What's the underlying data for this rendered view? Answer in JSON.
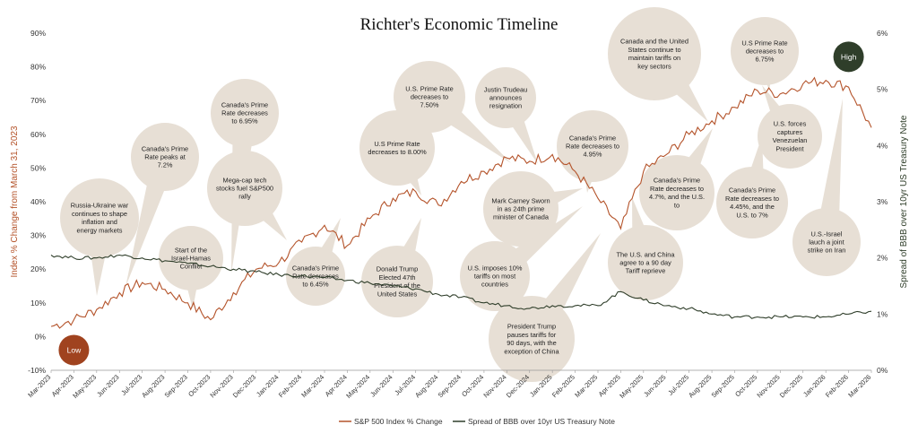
{
  "chart_data": {
    "type": "line",
    "title": "Richter's Economic Timeline",
    "ylabel_left": "Index % Change from March 31, 2023",
    "ylabel_right": "Spread of BBB over 10yr US Treasury Note",
    "y_left_lim": [
      -10,
      90
    ],
    "y_left_ticks": [
      "-10%",
      "0%",
      "10%",
      "20%",
      "30%",
      "40%",
      "50%",
      "60%",
      "70%",
      "80%",
      "90%"
    ],
    "y_right_lim": [
      0,
      6
    ],
    "y_right_ticks": [
      "0%",
      "1%",
      "2%",
      "3%",
      "4%",
      "5%",
      "6%"
    ],
    "x_ticks": [
      "Mar-2023",
      "Apr-2023",
      "May-2023",
      "Jun-2023",
      "Jul-2023",
      "Aug-2023",
      "Sep-2023",
      "Oct-2023",
      "Nov-2023",
      "Dec-2023",
      "Jan-2024",
      "Feb-2024",
      "Mar-2024",
      "Apr-2024",
      "May-2024",
      "Jun-2024",
      "Jul-2024",
      "Aug-2024",
      "Sep-2024",
      "Oct-2024",
      "Nov-2024",
      "Dec-2024",
      "Jan-2025",
      "Feb-2025",
      "Mar-2025",
      "Apr-2025",
      "May-2025",
      "Jun-2025",
      "Jul-2025",
      "Aug-2025",
      "Sep-2025",
      "Oct-2025",
      "Nov-2025",
      "Dec-2025",
      "Jan-2026",
      "Feb-2026",
      "Mar-2026"
    ],
    "grid": false,
    "legend_position": "bottom",
    "series": [
      {
        "name": "S&P 500 Index % Change",
        "axis": "left",
        "color": "#b4532a",
        "x": [
          "Mar-2023",
          "Apr-2023",
          "May-2023",
          "Jun-2023",
          "Jul-2023",
          "Aug-2023",
          "Sep-2023",
          "Oct-2023",
          "Nov-2023",
          "Dec-2023",
          "Jan-2024",
          "Feb-2024",
          "Mar-2024",
          "Apr-2024",
          "May-2024",
          "Jun-2024",
          "Jul-2024",
          "Aug-2024",
          "Sep-2024",
          "Oct-2024",
          "Nov-2024",
          "Dec-2024",
          "Jan-2025",
          "Feb-2025",
          "Mar-2025",
          "Apr-2025",
          "May-2025",
          "Jun-2025",
          "Jul-2025",
          "Aug-2025",
          "Sep-2025",
          "Oct-2025",
          "Nov-2025",
          "Dec-2025",
          "Jan-2026",
          "Feb-2026",
          "Mar-2026"
        ],
        "values": [
          3,
          5,
          8,
          13,
          16,
          14,
          10,
          5,
          13,
          20,
          22,
          28,
          33,
          27,
          35,
          41,
          43,
          39,
          46,
          49,
          53,
          52,
          54,
          49,
          41,
          32,
          49,
          54,
          60,
          64,
          68,
          73,
          72,
          75,
          76,
          74,
          62
        ]
      },
      {
        "name": "Spread of BBB over 10yr US Treasury Note",
        "axis": "right",
        "color": "#2f3e2a",
        "x": [
          "Mar-2023",
          "Apr-2023",
          "May-2023",
          "Jun-2023",
          "Jul-2023",
          "Aug-2023",
          "Sep-2023",
          "Oct-2023",
          "Nov-2023",
          "Dec-2023",
          "Jan-2024",
          "Feb-2024",
          "Mar-2024",
          "Apr-2024",
          "May-2024",
          "Jun-2024",
          "Jul-2024",
          "Aug-2024",
          "Sep-2024",
          "Oct-2024",
          "Nov-2024",
          "Dec-2024",
          "Jan-2025",
          "Feb-2025",
          "Mar-2025",
          "Apr-2025",
          "May-2025",
          "Jun-2025",
          "Jul-2025",
          "Aug-2025",
          "Sep-2025",
          "Oct-2025",
          "Nov-2025",
          "Dec-2025",
          "Jan-2026",
          "Feb-2026",
          "Mar-2026"
        ],
        "values": [
          2.05,
          2.0,
          2.0,
          2.05,
          2.0,
          1.95,
          1.9,
          1.85,
          1.8,
          1.75,
          1.7,
          1.68,
          1.65,
          1.6,
          1.55,
          1.5,
          1.45,
          1.35,
          1.3,
          1.2,
          1.15,
          1.1,
          1.15,
          1.15,
          1.15,
          1.4,
          1.25,
          1.15,
          1.1,
          1.0,
          0.95,
          0.95,
          0.95,
          0.95,
          0.95,
          1.0,
          1.05
        ]
      }
    ],
    "markers": [
      {
        "label": "Low",
        "color": "#a0431f",
        "x": "Apr-2023",
        "y": -4
      },
      {
        "label": "High",
        "color": "#2f3e2a",
        "x": "Feb-2026",
        "y": 83
      }
    ],
    "annotations": [
      {
        "text": "Russia-Ukraine war continues to shape inflation and energy markets"
      },
      {
        "text": "Canada's Prime Rate peaks at 7.2%"
      },
      {
        "text": "Start of the Israel-Hamas Conflict"
      },
      {
        "text": "Canada's Prime Rate decreases to 6.95%"
      },
      {
        "text": "Mega-cap tech stocks fuel S&P500 rally"
      },
      {
        "text": "Canada's Prime Rate decreases to 6.45%"
      },
      {
        "text": "U.S Prime Rate decreases to 8.00%"
      },
      {
        "text": "Donald Trump Elected 47th President of the United States"
      },
      {
        "text": "U.S. Prime Rate decreases to 7.50%"
      },
      {
        "text": "Justin Trudeau announces resignation"
      },
      {
        "text": "Mark Carney Sworn in as 24th prime minister of Canada"
      },
      {
        "text": "U.S. imposes 10% tariffs on most countries"
      },
      {
        "text": "Canada's Prime Rate decreases to 4.95%"
      },
      {
        "text": "President Trump pauses tariffs for 90 days, with the exception of China"
      },
      {
        "text": "Canada and the United States continue to maintain tariffs on key sectors"
      },
      {
        "text": "The U.S. and China agree to a 90 day Tariff reprieve"
      },
      {
        "text": "Canada's Prime Rate decreases to 4.7%, and the U.S. to"
      },
      {
        "text": "Canada's Prime Rate decreases to 4.45%, and the U.S. to 7%"
      },
      {
        "text": "U.S Prime Rate decreases to 6.75%"
      },
      {
        "text": "U.S. forces captures Venezuelan President"
      },
      {
        "text": "U.S.-Israel lauch a joint strike on Iran"
      }
    ]
  }
}
